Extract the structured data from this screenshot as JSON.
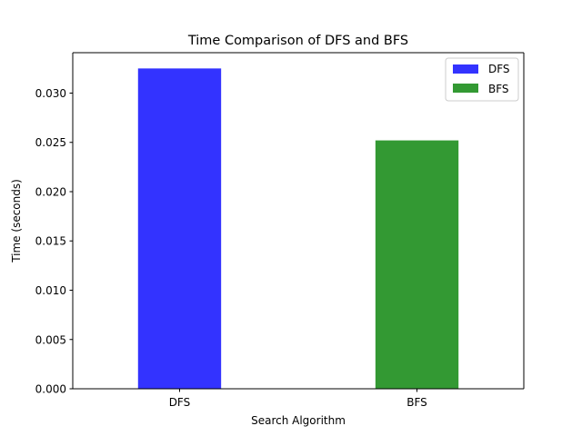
{
  "chart_data": {
    "type": "bar",
    "title": "Time Comparison of DFS and BFS",
    "xlabel": "Search Algorithm",
    "ylabel": "Time (seconds)",
    "categories": [
      "DFS",
      "BFS"
    ],
    "series": [
      {
        "name": "DFS",
        "category": "DFS",
        "value": 0.0325,
        "color": "#3333ff"
      },
      {
        "name": "BFS",
        "category": "BFS",
        "value": 0.0252,
        "color": "#339933"
      }
    ],
    "ylim": [
      0,
      0.0341
    ],
    "yticks": [
      0.0,
      0.005,
      0.01,
      0.015,
      0.02,
      0.025,
      0.03
    ],
    "ytick_labels": [
      "0.000",
      "0.005",
      "0.010",
      "0.015",
      "0.020",
      "0.025",
      "0.030"
    ],
    "grid": false,
    "legend": {
      "position": "top-right",
      "entries": [
        {
          "label": "DFS",
          "color": "#3333ff"
        },
        {
          "label": "BFS",
          "color": "#339933"
        }
      ]
    }
  }
}
